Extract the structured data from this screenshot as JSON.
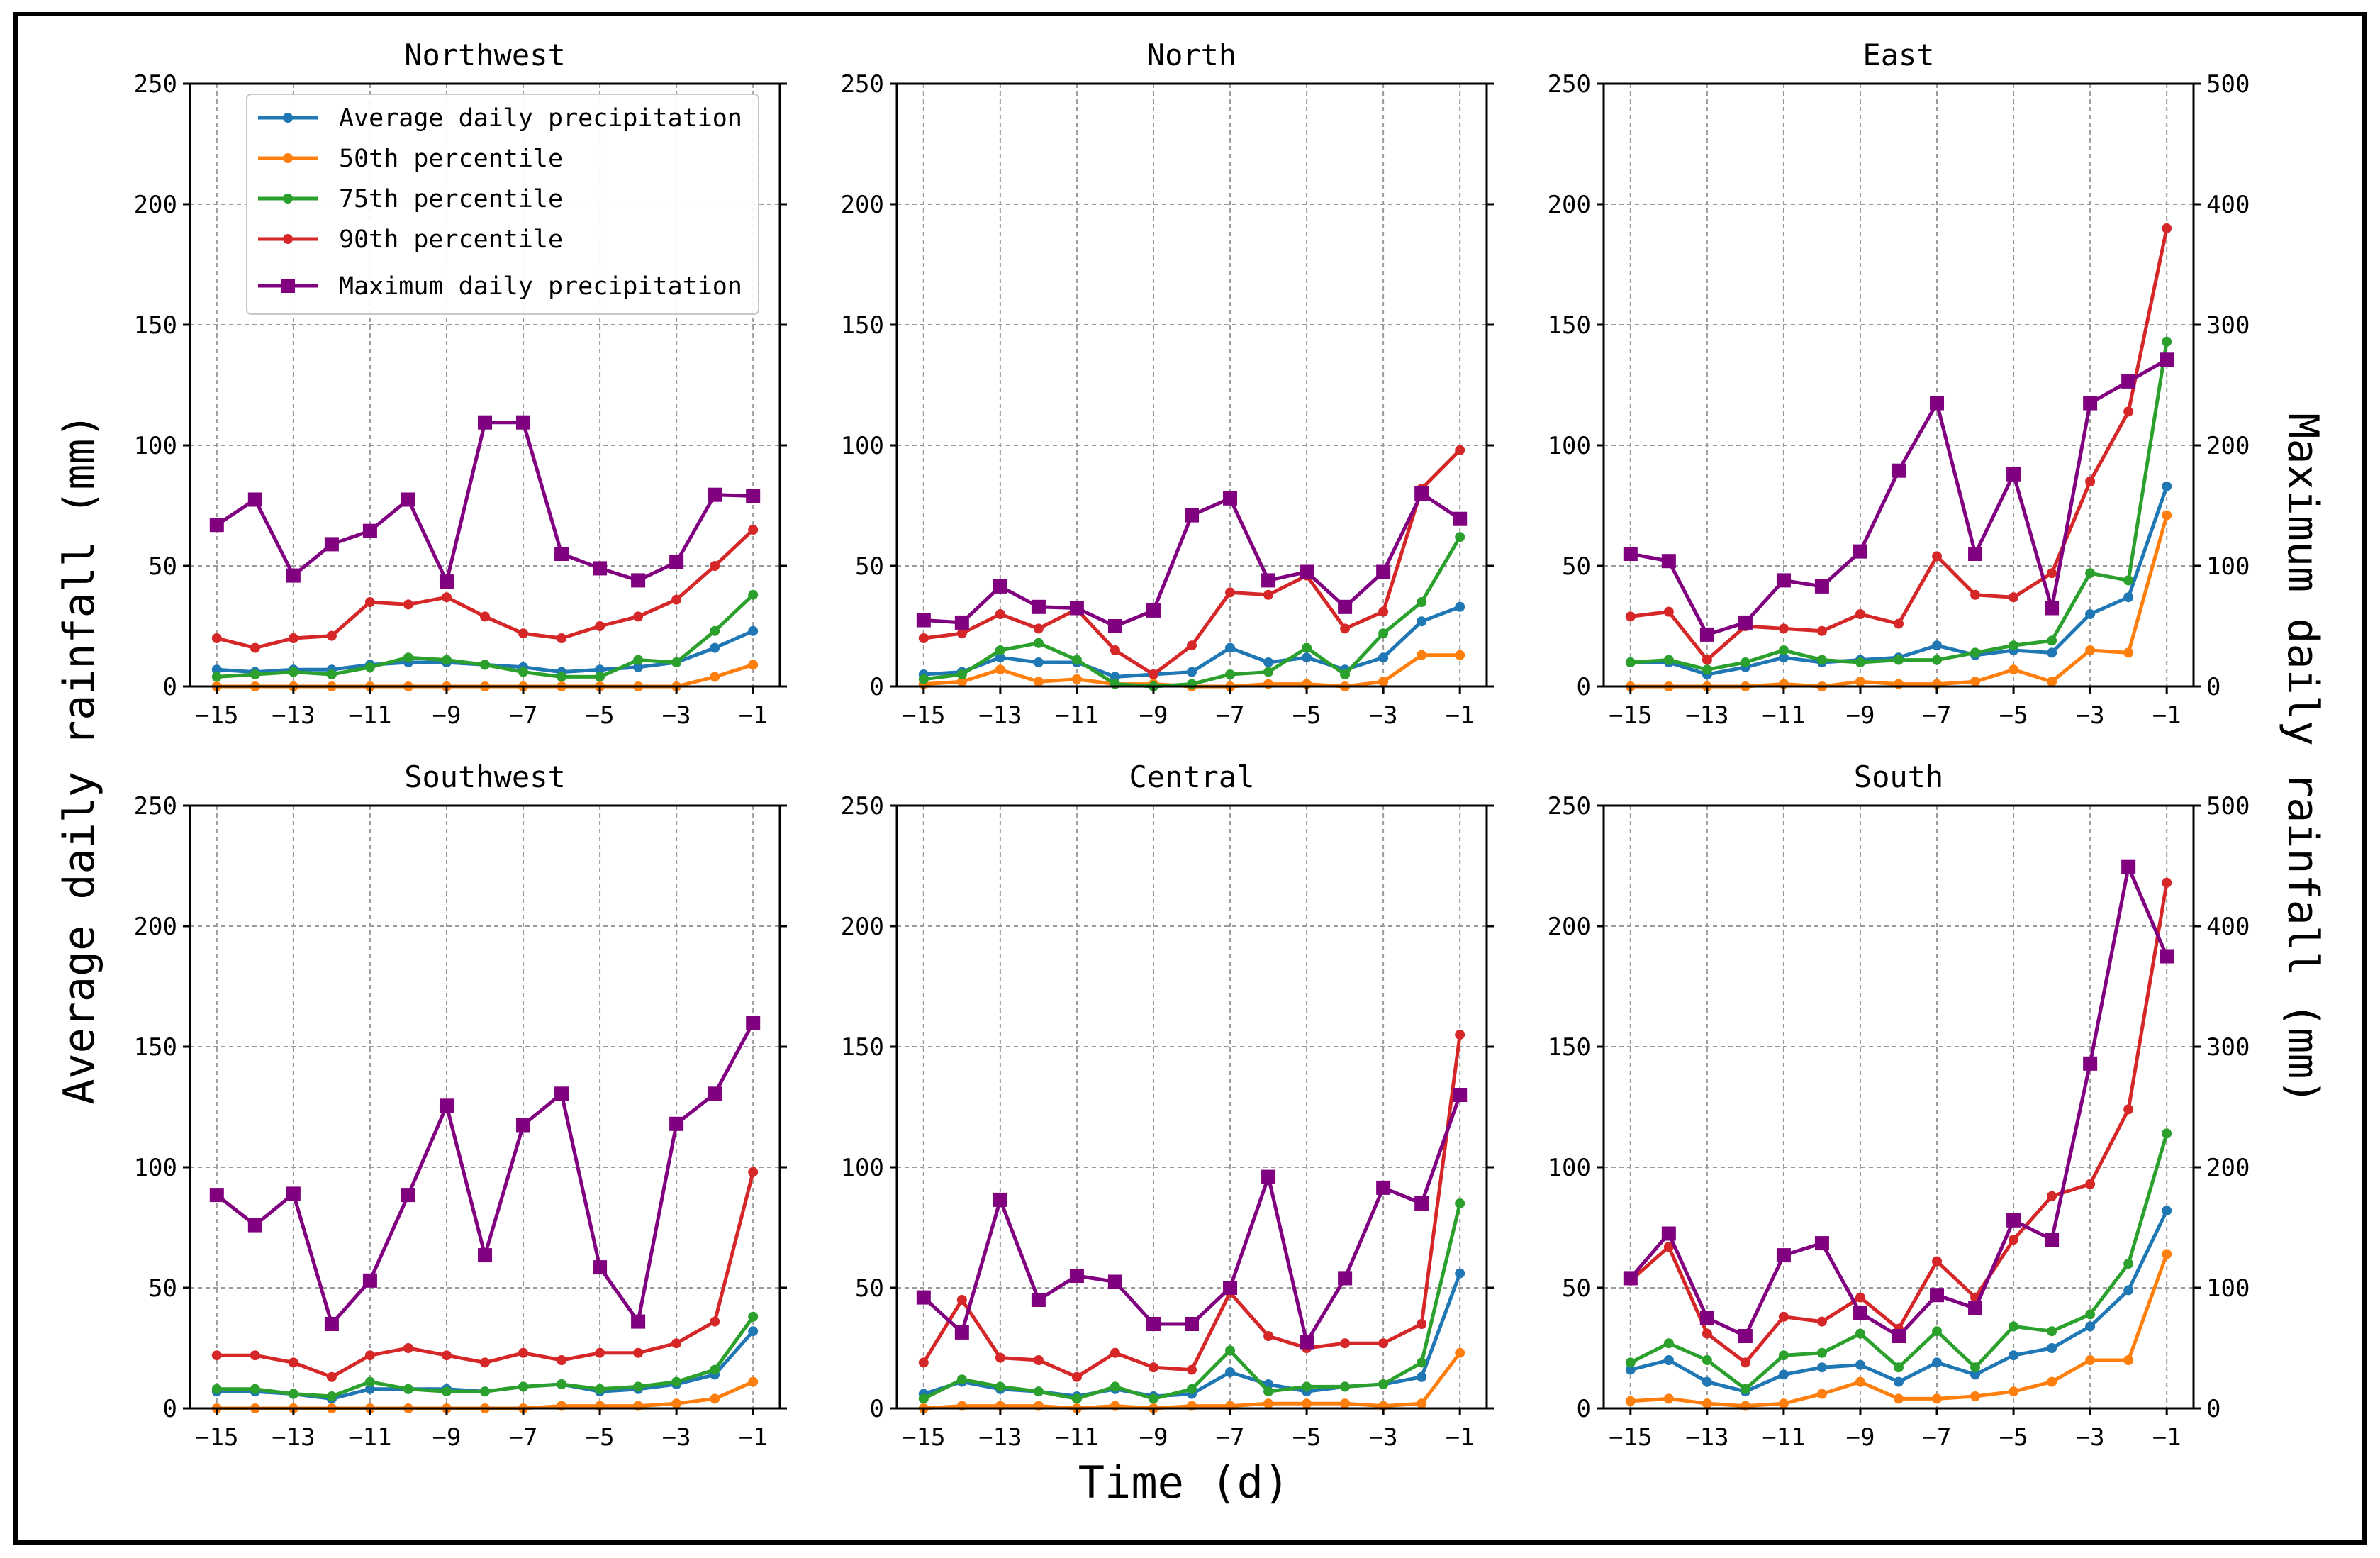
{
  "figure": {
    "ylabel_left": "Average daily rainfall (mm)",
    "ylabel_right": "Maximum daily rainfall (mm)",
    "xlabel": "Time (d)"
  },
  "legend": {
    "placement": "top-left of first panel",
    "entries": [
      {
        "label": "Average daily precipitation",
        "color": "#1f77b4",
        "marker": "circle"
      },
      {
        "label": "50th percentile",
        "color": "#ff7f0e",
        "marker": "circle"
      },
      {
        "label": "75th percentile",
        "color": "#2ca02c",
        "marker": "circle"
      },
      {
        "label": "90th percentile",
        "color": "#d62728",
        "marker": "circle"
      },
      {
        "label": "Maximum daily precipitation",
        "color": "#800080",
        "marker": "square"
      }
    ]
  },
  "chart_data": [
    {
      "type": "line",
      "title": "Northwest",
      "x": [
        -15,
        -14,
        -13,
        -12,
        -11,
        -10,
        -9,
        -8,
        -7,
        -6,
        -5,
        -4,
        -3,
        -2,
        -1
      ],
      "xticks": [
        -15,
        -13,
        -11,
        -9,
        -7,
        -5,
        -3,
        -1
      ],
      "ylim": [
        0,
        250
      ],
      "yticks": [
        0,
        50,
        100,
        150,
        200,
        250
      ],
      "y2lim": [
        0,
        500
      ],
      "y2ticks": [
        0,
        100,
        200,
        300,
        400,
        500
      ],
      "grid": true,
      "series": [
        {
          "name": "Average daily precipitation",
          "color": "#1f77b4",
          "axis": "left",
          "values": [
            7,
            6,
            7,
            7,
            9,
            10,
            10,
            9,
            8,
            6,
            7,
            8,
            10,
            16,
            23
          ]
        },
        {
          "name": "50th percentile",
          "color": "#ff7f0e",
          "axis": "left",
          "values": [
            0,
            0,
            0,
            0,
            0,
            0,
            0,
            0,
            0,
            0,
            0,
            0,
            0,
            4,
            9
          ]
        },
        {
          "name": "75th percentile",
          "color": "#2ca02c",
          "axis": "left",
          "values": [
            4,
            5,
            6,
            5,
            8,
            12,
            11,
            9,
            6,
            4,
            4,
            11,
            10,
            23,
            38
          ]
        },
        {
          "name": "90th percentile",
          "color": "#d62728",
          "axis": "left",
          "values": [
            20,
            16,
            20,
            21,
            35,
            34,
            37,
            29,
            22,
            20,
            25,
            29,
            36,
            50,
            65
          ]
        },
        {
          "name": "Maximum daily precipitation",
          "color": "#800080",
          "axis": "right",
          "values": [
            134,
            155,
            92,
            118,
            129,
            155,
            87,
            219,
            219,
            110,
            98,
            88,
            103,
            159,
            158
          ]
        }
      ]
    },
    {
      "type": "line",
      "title": "North",
      "x": [
        -15,
        -14,
        -13,
        -12,
        -11,
        -10,
        -9,
        -8,
        -7,
        -6,
        -5,
        -4,
        -3,
        -2,
        -1
      ],
      "xticks": [
        -15,
        -13,
        -11,
        -9,
        -7,
        -5,
        -3,
        -1
      ],
      "ylim": [
        0,
        250
      ],
      "yticks": [
        0,
        50,
        100,
        150,
        200,
        250
      ],
      "y2lim": [
        0,
        500
      ],
      "y2ticks": [
        0,
        100,
        200,
        300,
        400,
        500
      ],
      "grid": true,
      "series": [
        {
          "name": "Average daily precipitation",
          "color": "#1f77b4",
          "axis": "left",
          "values": [
            5,
            6,
            12,
            10,
            10,
            4,
            5,
            6,
            16,
            10,
            12,
            7,
            12,
            27,
            33
          ]
        },
        {
          "name": "50th percentile",
          "color": "#ff7f0e",
          "axis": "left",
          "values": [
            1,
            2,
            7,
            2,
            3,
            1,
            1,
            0,
            0,
            1,
            1,
            0,
            2,
            13,
            13
          ]
        },
        {
          "name": "75th percentile",
          "color": "#2ca02c",
          "axis": "left",
          "values": [
            3,
            5,
            15,
            18,
            11,
            1,
            0,
            1,
            5,
            6,
            16,
            5,
            22,
            35,
            62
          ]
        },
        {
          "name": "90th percentile",
          "color": "#d62728",
          "axis": "left",
          "values": [
            20,
            22,
            30,
            24,
            32,
            15,
            5,
            17,
            39,
            38,
            46,
            24,
            31,
            82,
            98
          ]
        },
        {
          "name": "Maximum daily precipitation",
          "color": "#800080",
          "axis": "right",
          "values": [
            55,
            53,
            83,
            66,
            65,
            50,
            63,
            142,
            156,
            88,
            95,
            66,
            95,
            160,
            139
          ]
        }
      ]
    },
    {
      "type": "line",
      "title": "East",
      "x": [
        -15,
        -14,
        -13,
        -12,
        -11,
        -10,
        -9,
        -8,
        -7,
        -6,
        -5,
        -4,
        -3,
        -2,
        -1
      ],
      "xticks": [
        -15,
        -13,
        -11,
        -9,
        -7,
        -5,
        -3,
        -1
      ],
      "ylim": [
        0,
        250
      ],
      "yticks": [
        0,
        50,
        100,
        150,
        200,
        250
      ],
      "y2lim": [
        0,
        500
      ],
      "y2ticks": [
        0,
        100,
        200,
        300,
        400,
        500
      ],
      "grid": true,
      "series": [
        {
          "name": "Average daily precipitation",
          "color": "#1f77b4",
          "axis": "left",
          "values": [
            10,
            10,
            5,
            8,
            12,
            10,
            11,
            12,
            17,
            13,
            15,
            14,
            30,
            37,
            83
          ]
        },
        {
          "name": "50th percentile",
          "color": "#ff7f0e",
          "axis": "left",
          "values": [
            0,
            0,
            0,
            0,
            1,
            0,
            2,
            1,
            1,
            2,
            7,
            2,
            15,
            14,
            71
          ]
        },
        {
          "name": "75th percentile",
          "color": "#2ca02c",
          "axis": "left",
          "values": [
            10,
            11,
            7,
            10,
            15,
            11,
            10,
            11,
            11,
            14,
            17,
            19,
            47,
            44,
            143
          ]
        },
        {
          "name": "90th percentile",
          "color": "#d62728",
          "axis": "left",
          "values": [
            29,
            31,
            11,
            25,
            24,
            23,
            30,
            26,
            54,
            38,
            37,
            47,
            85,
            114,
            190
          ]
        },
        {
          "name": "Maximum daily precipitation",
          "color": "#800080",
          "axis": "right",
          "values": [
            110,
            104,
            43,
            53,
            88,
            83,
            112,
            179,
            235,
            110,
            176,
            65,
            235,
            253,
            271
          ]
        }
      ]
    },
    {
      "type": "line",
      "title": "Southwest",
      "x": [
        -15,
        -14,
        -13,
        -12,
        -11,
        -10,
        -9,
        -8,
        -7,
        -6,
        -5,
        -4,
        -3,
        -2,
        -1
      ],
      "xticks": [
        -15,
        -13,
        -11,
        -9,
        -7,
        -5,
        -3,
        -1
      ],
      "ylim": [
        0,
        250
      ],
      "yticks": [
        0,
        50,
        100,
        150,
        200,
        250
      ],
      "y2lim": [
        0,
        500
      ],
      "y2ticks": [
        0,
        100,
        200,
        300,
        400,
        500
      ],
      "grid": true,
      "series": [
        {
          "name": "Average daily precipitation",
          "color": "#1f77b4",
          "axis": "left",
          "values": [
            7,
            7,
            6,
            4,
            8,
            8,
            8,
            7,
            9,
            10,
            7,
            8,
            10,
            14,
            32
          ]
        },
        {
          "name": "50th percentile",
          "color": "#ff7f0e",
          "axis": "left",
          "values": [
            0,
            0,
            0,
            0,
            0,
            0,
            0,
            0,
            0,
            1,
            1,
            1,
            2,
            4,
            11
          ]
        },
        {
          "name": "75th percentile",
          "color": "#2ca02c",
          "axis": "left",
          "values": [
            8,
            8,
            6,
            5,
            11,
            8,
            7,
            7,
            9,
            10,
            8,
            9,
            11,
            16,
            38
          ]
        },
        {
          "name": "90th percentile",
          "color": "#d62728",
          "axis": "left",
          "values": [
            22,
            22,
            19,
            13,
            22,
            25,
            22,
            19,
            23,
            20,
            23,
            23,
            27,
            36,
            98
          ]
        },
        {
          "name": "Maximum daily precipitation",
          "color": "#800080",
          "axis": "right",
          "values": [
            177,
            152,
            178,
            70,
            106,
            177,
            251,
            127,
            235,
            261,
            117,
            72,
            236,
            261,
            320
          ]
        }
      ]
    },
    {
      "type": "line",
      "title": "Central",
      "x": [
        -15,
        -14,
        -13,
        -12,
        -11,
        -10,
        -9,
        -8,
        -7,
        -6,
        -5,
        -4,
        -3,
        -2,
        -1
      ],
      "xticks": [
        -15,
        -13,
        -11,
        -9,
        -7,
        -5,
        -3,
        -1
      ],
      "ylim": [
        0,
        250
      ],
      "yticks": [
        0,
        50,
        100,
        150,
        200,
        250
      ],
      "y2lim": [
        0,
        500
      ],
      "y2ticks": [
        0,
        100,
        200,
        300,
        400,
        500
      ],
      "grid": true,
      "series": [
        {
          "name": "Average daily precipitation",
          "color": "#1f77b4",
          "axis": "left",
          "values": [
            6,
            11,
            8,
            7,
            5,
            8,
            5,
            6,
            15,
            10,
            7,
            9,
            10,
            13,
            56
          ]
        },
        {
          "name": "50th percentile",
          "color": "#ff7f0e",
          "axis": "left",
          "values": [
            0,
            1,
            1,
            1,
            0,
            1,
            0,
            1,
            1,
            2,
            2,
            2,
            1,
            2,
            23
          ]
        },
        {
          "name": "75th percentile",
          "color": "#2ca02c",
          "axis": "left",
          "values": [
            4,
            12,
            9,
            7,
            4,
            9,
            4,
            8,
            24,
            7,
            9,
            9,
            10,
            19,
            85
          ]
        },
        {
          "name": "90th percentile",
          "color": "#d62728",
          "axis": "left",
          "values": [
            19,
            45,
            21,
            20,
            13,
            23,
            17,
            16,
            48,
            30,
            25,
            27,
            27,
            35,
            155
          ]
        },
        {
          "name": "Maximum daily precipitation",
          "color": "#800080",
          "axis": "right",
          "values": [
            92,
            63,
            173,
            90,
            110,
            105,
            70,
            70,
            100,
            192,
            55,
            108,
            183,
            170,
            260
          ]
        }
      ]
    },
    {
      "type": "line",
      "title": "South",
      "x": [
        -15,
        -14,
        -13,
        -12,
        -11,
        -10,
        -9,
        -8,
        -7,
        -6,
        -5,
        -4,
        -3,
        -2,
        -1
      ],
      "xticks": [
        -15,
        -13,
        -11,
        -9,
        -7,
        -5,
        -3,
        -1
      ],
      "ylim": [
        0,
        250
      ],
      "yticks": [
        0,
        50,
        100,
        150,
        200,
        250
      ],
      "y2lim": [
        0,
        500
      ],
      "y2ticks": [
        0,
        100,
        200,
        300,
        400,
        500
      ],
      "grid": true,
      "series": [
        {
          "name": "Average daily precipitation",
          "color": "#1f77b4",
          "axis": "left",
          "values": [
            16,
            20,
            11,
            7,
            14,
            17,
            18,
            11,
            19,
            14,
            22,
            25,
            34,
            49,
            82
          ]
        },
        {
          "name": "50th percentile",
          "color": "#ff7f0e",
          "axis": "left",
          "values": [
            3,
            4,
            2,
            1,
            2,
            6,
            11,
            4,
            4,
            5,
            7,
            11,
            20,
            20,
            64
          ]
        },
        {
          "name": "75th percentile",
          "color": "#2ca02c",
          "axis": "left",
          "values": [
            19,
            27,
            20,
            8,
            22,
            23,
            31,
            17,
            32,
            17,
            34,
            32,
            39,
            60,
            114
          ]
        },
        {
          "name": "90th percentile",
          "color": "#d62728",
          "axis": "left",
          "values": [
            53,
            67,
            31,
            19,
            38,
            36,
            46,
            33,
            61,
            46,
            70,
            88,
            93,
            124,
            218
          ]
        },
        {
          "name": "Maximum daily precipitation",
          "color": "#800080",
          "axis": "right",
          "values": [
            108,
            145,
            75,
            60,
            127,
            137,
            79,
            60,
            94,
            83,
            156,
            140,
            286,
            449,
            375
          ]
        }
      ]
    }
  ]
}
